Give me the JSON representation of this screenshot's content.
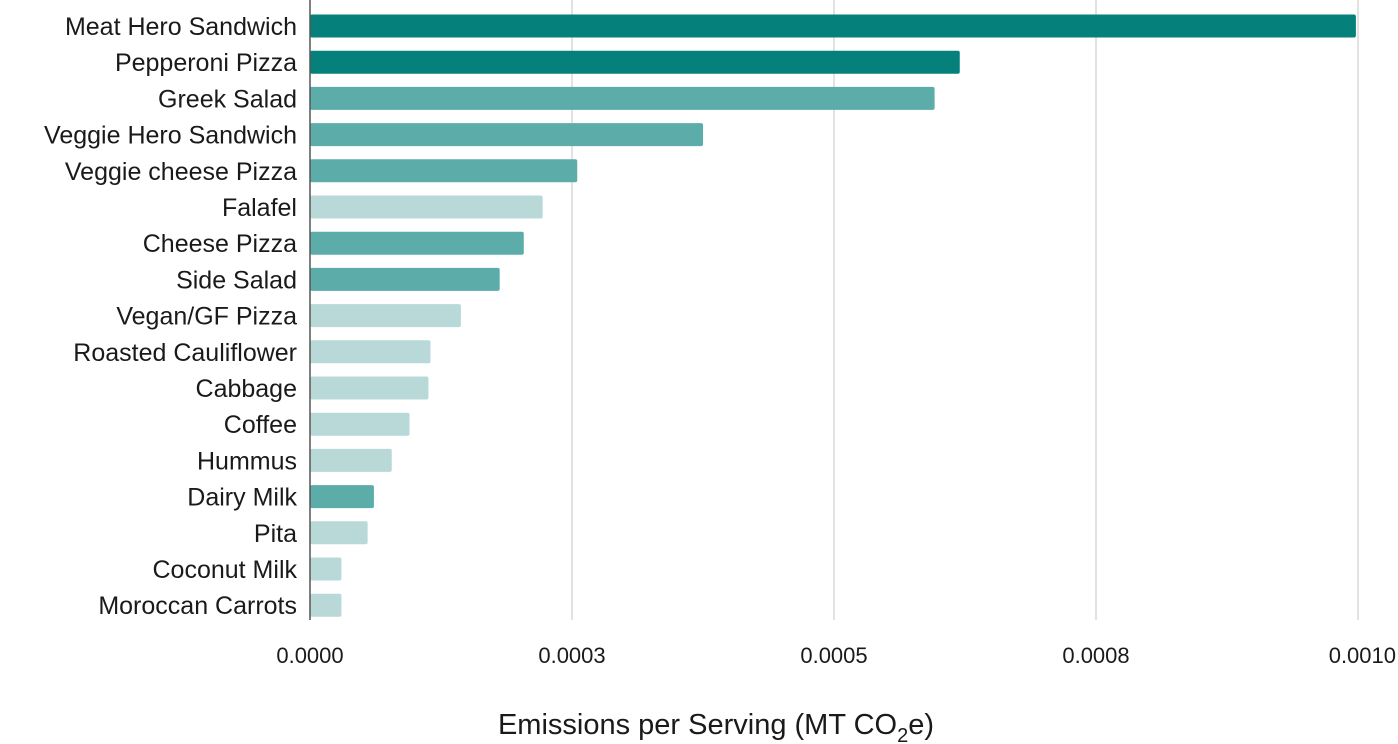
{
  "chart_data": {
    "type": "bar",
    "orientation": "horizontal",
    "title": "",
    "xlabel": {
      "main": "Emissions per Serving (MT CO",
      "subscript": "2",
      "suffix": "e)"
    },
    "ylabel": "",
    "xlim": [
      0,
      0.001
    ],
    "x_ticks": [
      "0.0000",
      "0.0003",
      "0.0005",
      "0.0008",
      "0.0010"
    ],
    "x_tick_values": [
      0,
      0.00025,
      0.0005,
      0.00075,
      0.001
    ],
    "grid": "vertical",
    "legend": "none",
    "categories": [
      "Meat Hero Sandwich",
      "Pepperoni Pizza",
      "Greek Salad",
      "Veggie Hero Sandwich",
      "Veggie cheese Pizza",
      "Falafel",
      "Cheese Pizza",
      "Side Salad",
      "Vegan/GF Pizza",
      "Roasted Cauliflower",
      "Cabbage",
      "Coffee",
      "Hummus",
      "Dairy Milk",
      "Pita",
      "Coconut Milk",
      "Moroccan Carrots"
    ],
    "values": [
      0.000998,
      0.00062,
      0.000596,
      0.000375,
      0.000255,
      0.000222,
      0.000204,
      0.000181,
      0.000144,
      0.000115,
      0.000113,
      9.5e-05,
      7.8e-05,
      6.1e-05,
      5.5e-05,
      3e-05,
      3e-05
    ],
    "bar_colors": [
      "#06807a",
      "#06807a",
      "#5cacaa",
      "#5cacaa",
      "#5cacaa",
      "#b8d9d8",
      "#5cacaa",
      "#5cacaa",
      "#b8d9d8",
      "#b8d9d8",
      "#b8d9d8",
      "#b8d9d8",
      "#b8d9d8",
      "#5cacaa",
      "#b8d9d8",
      "#b8d9d8",
      "#b8d9d8"
    ],
    "colors": {
      "dark": "#06807a",
      "medium": "#5cacaa",
      "light": "#b8d9d8",
      "gridline": "#cfcfcf",
      "axis": "#555555",
      "text": "#1a1a1a"
    }
  }
}
